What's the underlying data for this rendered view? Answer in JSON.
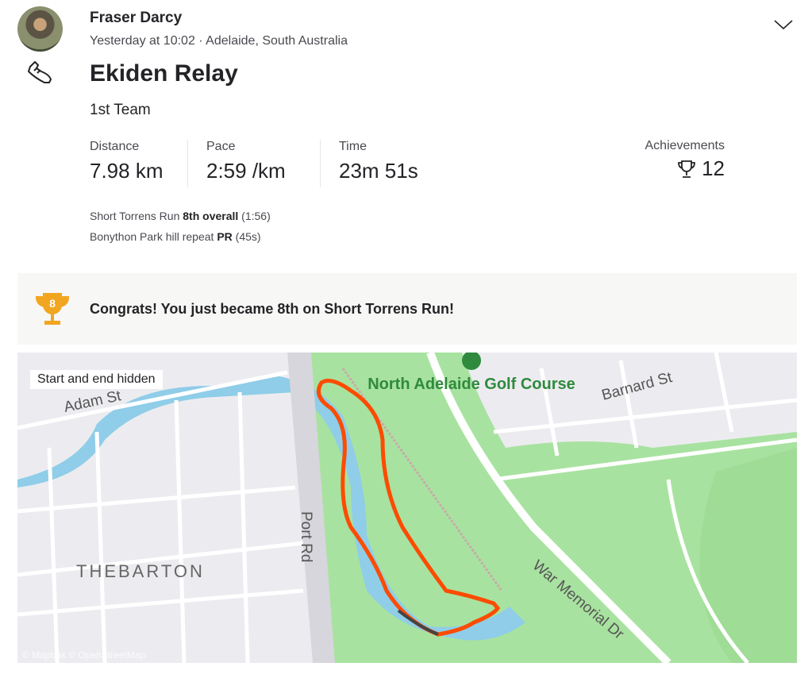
{
  "athlete": {
    "name": "Fraser Darcy",
    "meta": "Yesterday at 10:02 · Adelaide, South Australia"
  },
  "activity": {
    "title": "Ekiden Relay",
    "description": "1st Team",
    "sport_icon": "running-shoe-icon"
  },
  "stats": [
    {
      "label": "Distance",
      "value": "7.98 km"
    },
    {
      "label": "Pace",
      "value": "2:59 /km"
    },
    {
      "label": "Time",
      "value": "23m 51s"
    }
  ],
  "achievements": {
    "label": "Achievements",
    "count": "12",
    "icon": "trophy-icon"
  },
  "segments": [
    {
      "name": "Short Torrens Run",
      "result": "8th overall",
      "detail": "(1:56)"
    },
    {
      "name": "Bonython Park hill repeat",
      "result": "PR",
      "detail": "(45s)"
    }
  ],
  "banner": {
    "text": "Congrats! You just became 8th on Short Torrens Run!",
    "rank": "8",
    "color": "#f2a51f"
  },
  "map": {
    "hidden_label": "Start and end hidden",
    "attribution": "© Mapbox © OpenStreetMap",
    "labels": {
      "adam": "Adam St",
      "barnard": "Barnard St",
      "golf": "North Adelaide Golf Course",
      "thebarton": "THEBARTON",
      "port": "Port Rd",
      "war": "War Memorial Dr"
    },
    "route_color": "#fc4c02"
  }
}
